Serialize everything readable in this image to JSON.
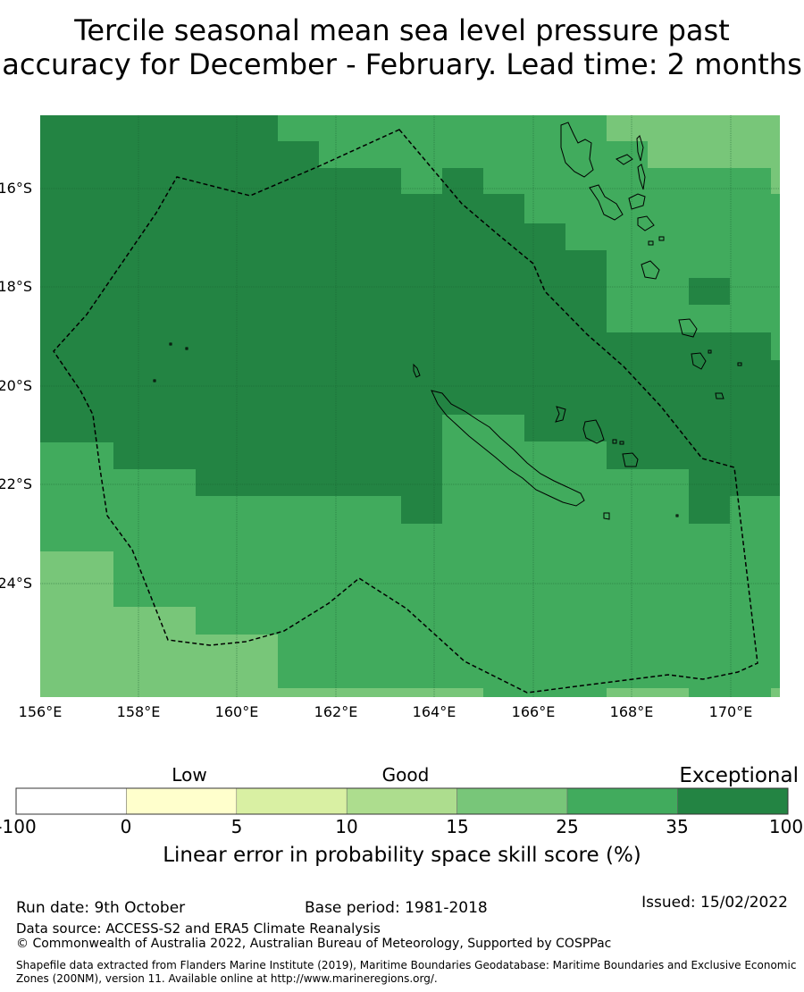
{
  "title": {
    "line1": "Tercile seasonal mean sea level pressure past",
    "line2": "accuracy for December - February. Lead time: 2 months"
  },
  "map": {
    "lat_labels": [
      "16°S",
      "18°S",
      "20°S",
      "22°S",
      "24°S"
    ],
    "lon_labels": [
      "156°E",
      "158°E",
      "160°E",
      "162°E",
      "164°E",
      "166°E",
      "168°E",
      "170°E"
    ],
    "lon_range": [
      156,
      171
    ],
    "lat_range": [
      -14.5,
      -26.3
    ],
    "category_colors": {
      "c15": "#78c679",
      "c25": "#41ab5d",
      "c35": "#238443"
    },
    "boundary_color": "#000000",
    "land_outline_color": "#000000"
  },
  "colorbar": {
    "categories": [
      "Low",
      "Good",
      "Exceptional"
    ],
    "ticks": [
      "-100",
      "0",
      "5",
      "10",
      "15",
      "25",
      "35",
      "100"
    ],
    "colors": [
      "#ffffff",
      "#ffffcc",
      "#d9f0a3",
      "#addd8e",
      "#78c679",
      "#41ab5d",
      "#238443"
    ],
    "label": "Linear error in probability space skill score (%)"
  },
  "footer": {
    "run_date": "Run date: 9th October",
    "base_period": "Base period: 1981-2018",
    "issued": "Issued: 15/02/2022",
    "data_source": "Data source: ACCESS-S2 and ERA5 Climate Reanalysis",
    "copyright": "© Commonwealth of Australia 2022, Australian Bureau of Meteorology, Supported by COSPPac",
    "shapefile": "Shapefile data extracted from Flanders Marine Institute (2019), Maritime Boundaries Geodatabase: Maritime Boundaries and Exclusive Economic Zones (200NM), version 11. Available online at http://www.marineregions.org/."
  }
}
